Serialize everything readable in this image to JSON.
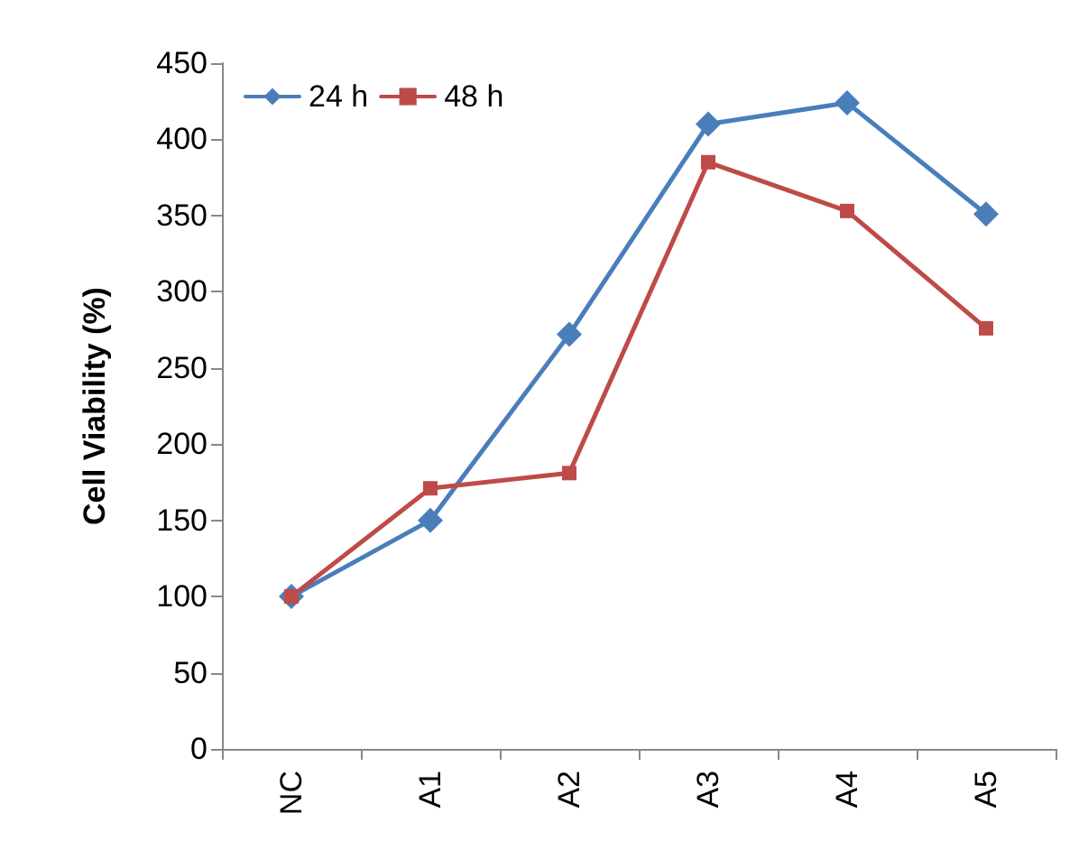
{
  "chart_data": {
    "type": "line",
    "ylabel": "Cell Viability (%)",
    "categories": [
      "NC",
      "A1",
      "A2",
      "A3",
      "A4",
      "A5"
    ],
    "series": [
      {
        "name": "24 h",
        "color": "#4a7ebb",
        "marker": "diamond",
        "values": [
          100,
          150,
          272,
          410,
          424,
          351
        ]
      },
      {
        "name": "48 h",
        "color": "#be4b48",
        "marker": "square",
        "values": [
          100,
          171,
          181,
          385,
          353,
          276
        ]
      }
    ],
    "ylim": [
      0,
      450
    ],
    "yticks": [
      0,
      50,
      100,
      150,
      200,
      250,
      300,
      350,
      400,
      450
    ],
    "grid": false,
    "legend": "top left",
    "line_style": "solid"
  }
}
